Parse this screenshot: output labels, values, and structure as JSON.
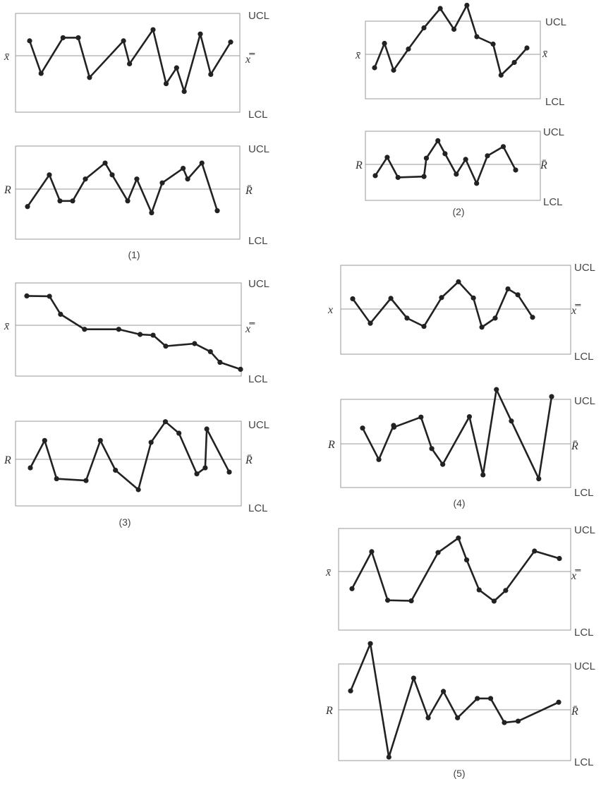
{
  "labels": {
    "ucl": "UCL",
    "lcl": "LCL"
  },
  "chart_data": [
    {
      "type": "line",
      "label": "(1)",
      "charts": [
        {
          "kind": "xbar",
          "center_label": "x̿",
          "side_label": "x̄",
          "values": [
            0.48,
            -0.57,
            0.58,
            0.58,
            -0.7,
            0.48,
            -0.26,
            0.84,
            -0.9,
            -0.39,
            -1.15,
            0.7,
            -0.6,
            0.44
          ]
        },
        {
          "kind": "range",
          "center_label": "R̄",
          "side_label": "R",
          "values": [
            -0.59,
            0.48,
            -0.4,
            -0.4,
            0.34,
            0.88,
            0.48,
            -0.4,
            0.34,
            -0.8,
            0.21,
            0.7,
            0.34,
            0.88,
            -0.73
          ]
        }
      ]
    },
    {
      "type": "line",
      "label": "(2)",
      "charts": [
        {
          "kind": "xbar",
          "center_label": "x̄",
          "side_label": "x̄",
          "values": [
            -0.38,
            0.31,
            -0.45,
            0.15,
            0.75,
            1.3,
            0.71,
            1.39,
            0.5,
            0.29,
            -0.59,
            -0.23,
            0.18
          ]
        },
        {
          "kind": "range",
          "center_label": "R̄",
          "side_label": "R",
          "values": [
            -0.38,
            0.24,
            -0.44,
            -0.41,
            0.21,
            0.8,
            0.36,
            -0.33,
            0.17,
            -0.64,
            0.29,
            0.6,
            -0.19
          ]
        }
      ]
    },
    {
      "type": "line",
      "label": "(3)",
      "charts": [
        {
          "kind": "xbar",
          "center_label": "x̿",
          "side_label": "x̄",
          "values": [
            0.8,
            0.79,
            0.3,
            -0.11,
            -0.11,
            -0.25,
            -0.27,
            -0.57,
            -0.5,
            -0.72,
            -1.01,
            -1.2
          ]
        },
        {
          "kind": "range",
          "center_label": "R̄",
          "side_label": "R",
          "values": [
            -0.28,
            0.62,
            -0.64,
            -0.7,
            0.62,
            -0.36,
            -1.0,
            0.56,
            1.24,
            0.86,
            -0.48,
            -0.28,
            1.0,
            -0.42
          ]
        }
      ]
    },
    {
      "type": "line",
      "label": "(4)",
      "charts": [
        {
          "kind": "xbar",
          "center_label": "x̿",
          "side_label": "x",
          "values": [
            0.26,
            -0.36,
            0.27,
            -0.23,
            -0.44,
            0.29,
            0.69,
            0.28,
            -0.46,
            -0.23,
            0.51,
            0.36,
            -0.21
          ]
        },
        {
          "kind": "range",
          "center_label": "R̄",
          "side_label": "R",
          "values": [
            0.36,
            -0.36,
            0.42,
            0.38,
            0.61,
            -0.11,
            -0.47,
            0.62,
            -0.71,
            1.24,
            0.52,
            -0.8,
            1.08
          ]
        }
      ]
    },
    {
      "type": "line",
      "label": "(5)",
      "charts": [
        {
          "kind": "xbar",
          "center_label": "x̿",
          "side_label": "x̄",
          "values": [
            -0.58,
            0.67,
            -0.97,
            -0.99,
            0.64,
            1.13,
            0.39,
            -0.62,
            -1.0,
            -0.64,
            0.69,
            0.44
          ]
        },
        {
          "kind": "range",
          "center_label": "R̄",
          "side_label": "R",
          "values": [
            0.4,
            1.4,
            -1.0,
            0.67,
            -0.17,
            0.39,
            -0.17,
            0.24,
            0.24,
            -0.27,
            -0.24,
            0.16
          ]
        }
      ]
    }
  ]
}
